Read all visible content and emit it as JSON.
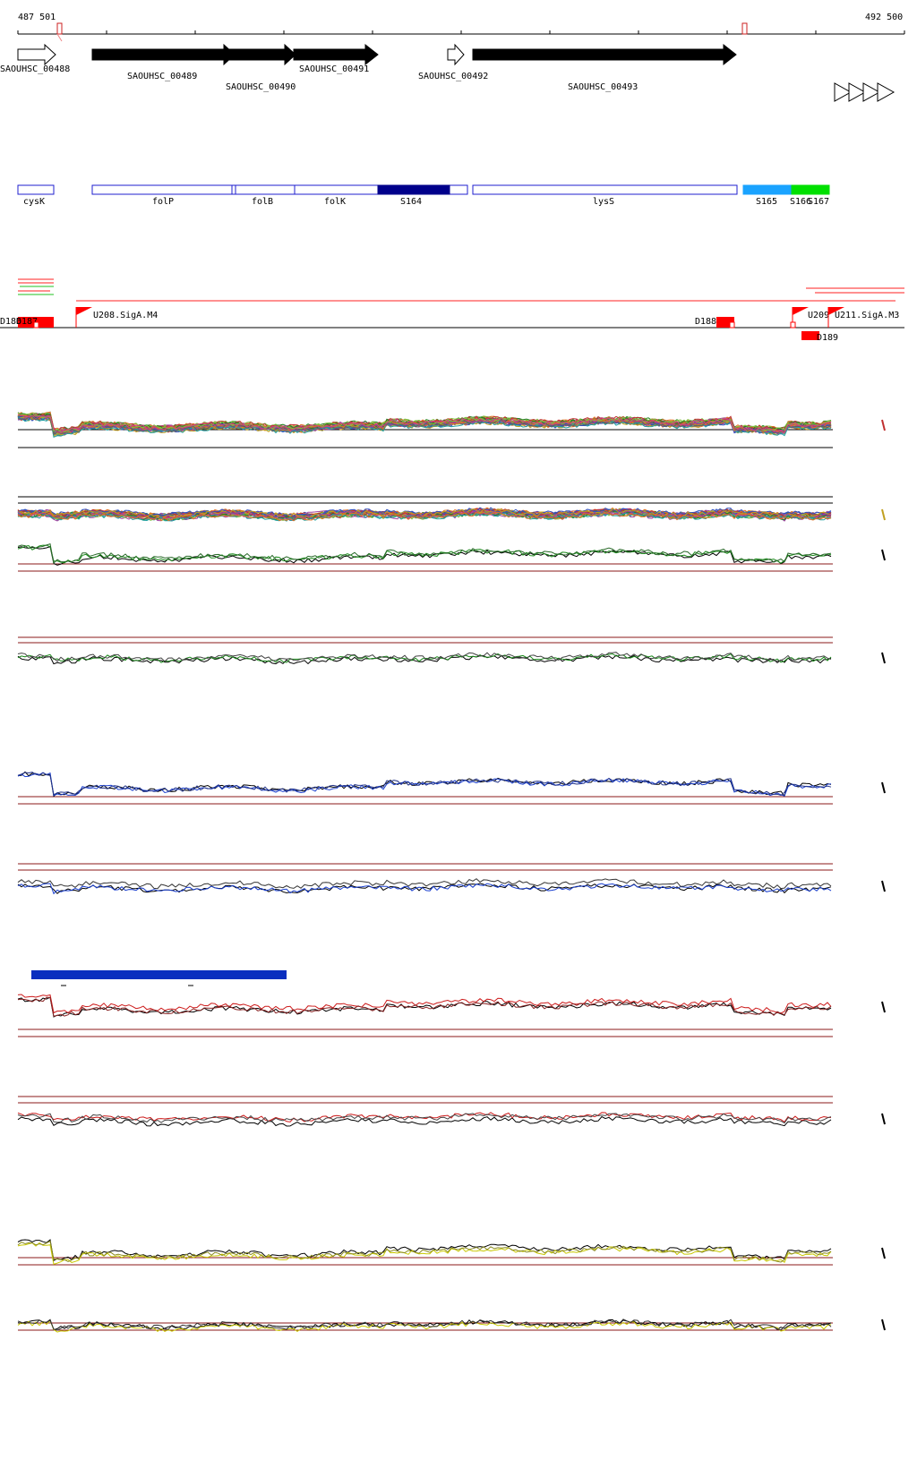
{
  "coords": {
    "start": "487 501",
    "end": "492 500"
  },
  "colors": {
    "gene_fill": "#000000",
    "feature_outline": "#1f1fcf",
    "s164": "#00008b",
    "s165": "#1aa3ff",
    "s166": "#00e000",
    "promoter": "#ff0000",
    "ref_line": "#8b1a1a",
    "track_green": "#1a8a1a",
    "track_blue": "#1a3fcf",
    "track_red": "#cc1a1a",
    "track_yellow": "#c8c800",
    "scale_bar": "#0a2fbf"
  },
  "genes": [
    {
      "label": "SAOUHSC_00488",
      "strand": "+",
      "style": "outline"
    },
    {
      "label": "SAOUHSC_00489",
      "strand": "+",
      "style": "filled"
    },
    {
      "label": "SAOUHSC_00490",
      "strand": "+",
      "style": "filled"
    },
    {
      "label": "SAOUHSC_00491",
      "strand": "+",
      "style": "filled"
    },
    {
      "label": "SAOUHSC_00492",
      "strand": "+",
      "style": "outline"
    },
    {
      "label": "SAOUHSC_00493",
      "strand": "+",
      "style": "filled"
    }
  ],
  "features": [
    {
      "label": "cysK"
    },
    {
      "label": "folP"
    },
    {
      "label": "folB"
    },
    {
      "label": "folK"
    },
    {
      "label": "S164"
    },
    {
      "label": "lysS"
    },
    {
      "label": "S165"
    },
    {
      "label": "S166"
    },
    {
      "label": "S167"
    }
  ],
  "promoters": [
    {
      "label": "D186"
    },
    {
      "label": "D187"
    },
    {
      "label": "U208.SigA.M4"
    },
    {
      "label": "D188"
    },
    {
      "label": "U209"
    },
    {
      "label": "U211.SigA.M3"
    },
    {
      "label": "D189"
    }
  ],
  "tracks": [
    {
      "name": "heatmap-lines-top",
      "color": "multi"
    },
    {
      "name": "heatmap-lines-second",
      "color": "multi"
    },
    {
      "name": "green-track-1",
      "color": "green"
    },
    {
      "name": "green-track-2",
      "color": "green"
    },
    {
      "name": "blue-track-1",
      "color": "blue"
    },
    {
      "name": "blue-track-2",
      "color": "blue"
    },
    {
      "name": "red-track-1",
      "color": "red"
    },
    {
      "name": "red-track-2",
      "color": "red"
    },
    {
      "name": "yellow-track-1",
      "color": "yellow"
    },
    {
      "name": "yellow-track-2",
      "color": "yellow"
    }
  ]
}
